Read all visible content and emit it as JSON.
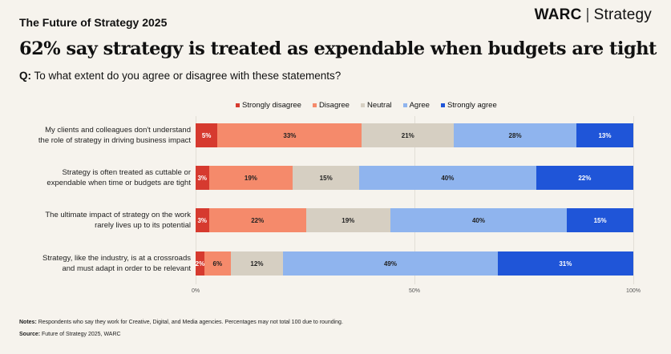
{
  "header": {
    "kicker": "The Future of Strategy 2025",
    "brand_main": "WARC",
    "brand_sep": "|",
    "brand_sub": "Strategy",
    "headline": "62% say strategy is treated as expendable when budgets are tight",
    "question_prefix": "Q:",
    "question_text": "To what extent do you agree or disagree with these statements?"
  },
  "colors": {
    "strongly_disagree": "#d63a2f",
    "disagree": "#f58a6b",
    "neutral": "#d6cfc2",
    "agree": "#8fb4ee",
    "strongly_agree": "#1f55d8"
  },
  "chart_data": {
    "type": "bar",
    "orientation": "horizontal",
    "stacked": true,
    "legend_position": "top",
    "xlim": [
      0,
      100
    ],
    "xticks": [
      "0%",
      "50%",
      "100%"
    ],
    "categories": [
      [
        "My clients and colleagues don't understand",
        "the role of strategy in driving business impact"
      ],
      [
        "Strategy is often treated as cuttable or",
        "expendable when time or budgets are tight"
      ],
      [
        "The ultimate impact of strategy on the work",
        "rarely lives up to its potential"
      ],
      [
        "Strategy, like the industry, is at a crossroads",
        "and must adapt in order to be relevant"
      ]
    ],
    "series": [
      {
        "name": "Strongly disagree",
        "key": "strongly_disagree",
        "values": [
          5,
          3,
          3,
          2
        ],
        "labels": [
          "5%",
          "3%",
          "3%",
          "2%"
        ]
      },
      {
        "name": "Disagree",
        "key": "disagree",
        "values": [
          33,
          19,
          22,
          6
        ],
        "labels": [
          "33%",
          "19%",
          "22%",
          "6%"
        ]
      },
      {
        "name": "Neutral",
        "key": "neutral",
        "values": [
          21,
          15,
          19,
          12
        ],
        "labels": [
          "21%",
          "15%",
          "19%",
          "12%"
        ]
      },
      {
        "name": "Agree",
        "key": "agree",
        "values": [
          28,
          40,
          40,
          49
        ],
        "labels": [
          "28%",
          "40%",
          "40%",
          "49%"
        ]
      },
      {
        "name": "Strongly agree",
        "key": "strongly_agree",
        "values": [
          13,
          22,
          15,
          31
        ],
        "labels": [
          "13%",
          "22%",
          "15%",
          "31%"
        ]
      }
    ]
  },
  "footer": {
    "notes_prefix": "Notes:",
    "notes_text": "Respondents who say they work for Creative, Digital, and Media agencies. Percentages may not total 100 due to rounding.",
    "source_prefix": "Source:",
    "source_text": "Future of Strategy 2025, WARC"
  }
}
